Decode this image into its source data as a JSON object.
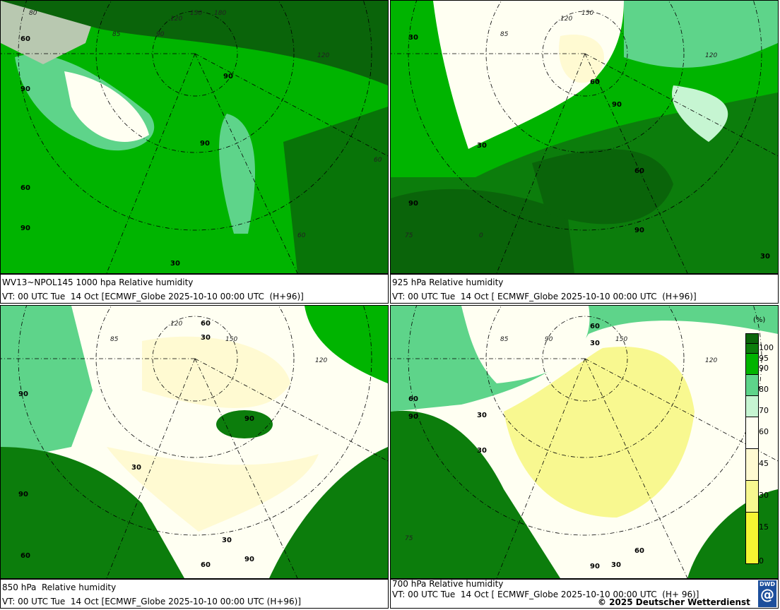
{
  "panels": [
    {
      "title": "WV13~NPOL145 1000 hpa Relative humidity",
      "valid": "VT: 00 UTC Tue  14 Oct [ECMWF_Globe 2025-10-10 00:00 UTC  (H+96)]",
      "contours": [
        "90",
        "90",
        "90",
        "60",
        "90",
        "60",
        "30",
        "60",
        "90"
      ]
    },
    {
      "title": "925 hPa Relative humidity",
      "valid": "VT: 00 UTC Tue  14 Oct [ ECMWF_Globe 2025-10-10 00:00 UTC  (H+96)]",
      "contours": [
        "30",
        "60",
        "90",
        "30",
        "60",
        "90",
        "90",
        "90",
        "30"
      ]
    },
    {
      "title": "850 hPa  Relative humidity",
      "valid": "VT: 00 UTC Tue  14 Oct [ECMWF_Globe 2025-10-10 00:00 UTC (H+96)]",
      "contours": [
        "30",
        "60",
        "90",
        "90",
        "90",
        "30",
        "30",
        "60",
        "90",
        "60"
      ]
    },
    {
      "title": "700 hPa Relative humidity",
      "valid": "VT: 00 UTC Tue  14 Oct [ ECMWF_Globe 2025-10-10 00:00 UTC  (H+ 96)]",
      "contours": [
        "60",
        "30",
        "60",
        "90",
        "30",
        "30",
        "60",
        "90",
        "30"
      ]
    }
  ],
  "grid_labels": [
    "80",
    "85",
    "90",
    "120",
    "150",
    "180",
    "150",
    "120",
    "90",
    "60",
    "60",
    "75",
    "0",
    "30"
  ],
  "legend": {
    "unit": "(%)",
    "ticks": [
      "100",
      "95",
      "90",
      "80",
      "70",
      "60",
      "45",
      "30",
      "15",
      "0"
    ],
    "colors": {
      "95-100": "#0a640a",
      "90-95": "#0c7d0c",
      "80-90": "#00b400",
      "70-80": "#5ed48a",
      "60-70": "#c6f5d2",
      "45-60": "#fffff2",
      "30-45": "#fffad2",
      "15-30": "#f8f890",
      "0-15": "#f5f532"
    }
  },
  "copyright": "© 2025 Deutscher Wetterdienst",
  "logo": "DWD"
}
